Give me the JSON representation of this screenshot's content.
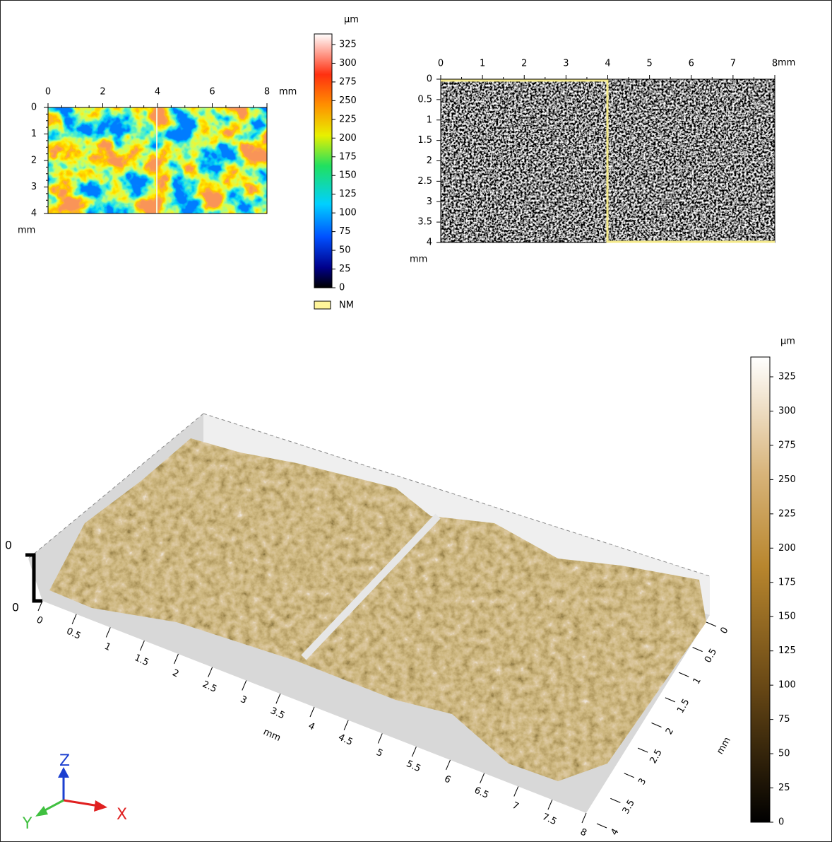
{
  "height_map": {
    "x_ticks": [
      0,
      2,
      4,
      6,
      8
    ],
    "x_unit": "mm",
    "y_ticks": [
      0,
      1,
      2,
      3,
      4
    ],
    "y_unit": "mm"
  },
  "color_scale_top": {
    "unit": "µm",
    "ticks": [
      0,
      25,
      50,
      75,
      100,
      125,
      150,
      175,
      200,
      225,
      250,
      275,
      300,
      325
    ],
    "legend": "NM"
  },
  "shaded_view": {
    "x_ticks": [
      0,
      1,
      2,
      3,
      4,
      5,
      6,
      7,
      8
    ],
    "x_unit": "mm",
    "y_ticks": [
      0,
      0.5,
      1,
      1.5,
      2,
      2.5,
      3,
      3.5,
      4
    ],
    "y_unit": "mm"
  },
  "view_3d": {
    "x_ticks": [
      0,
      0.5,
      1,
      1.5,
      2,
      2.5,
      3,
      3.5,
      4,
      4.5,
      5,
      5.5,
      6,
      6.5,
      7,
      7.5,
      8
    ],
    "x_unit": "mm",
    "y_ticks": [
      0,
      0.5,
      1,
      1.5,
      2,
      2.5,
      3,
      3.5,
      4
    ],
    "y_unit": "mm",
    "z_ticks": [
      0,
      0
    ],
    "triad": {
      "x": "X",
      "y": "Y",
      "z": "Z"
    }
  },
  "color_scale_bottom": {
    "unit": "µm",
    "ticks": [
      0,
      25,
      50,
      75,
      100,
      125,
      150,
      175,
      200,
      225,
      250,
      275,
      300,
      325
    ]
  }
}
